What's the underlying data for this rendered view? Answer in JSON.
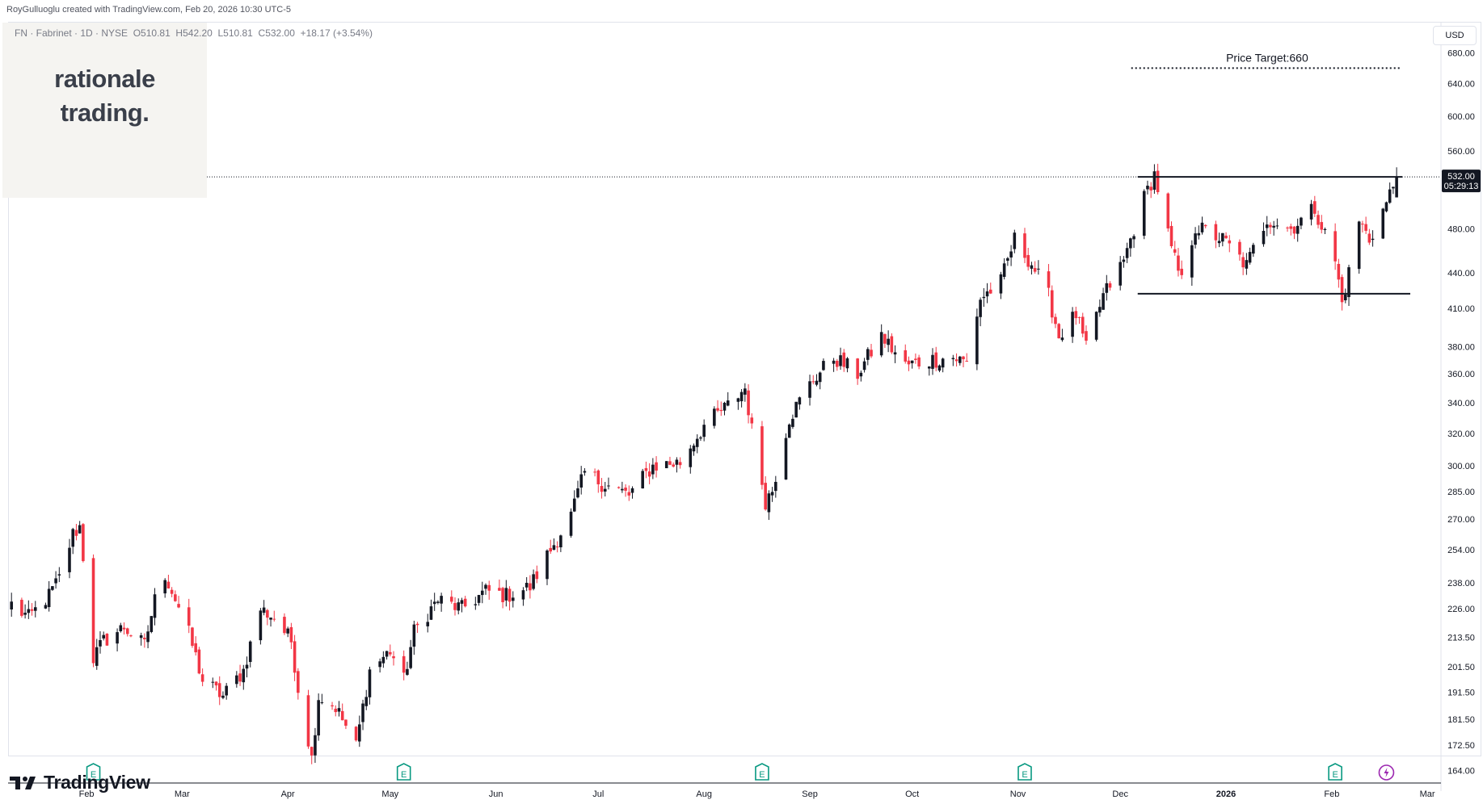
{
  "header": {
    "credit": "RoyGulluoglu created with TradingView.com, Feb 20, 2026 10:30 UTC-5"
  },
  "symbol_line": {
    "symbol": "FN · Fabrinet · 1D · NYSE",
    "open_label": "O",
    "open": "510.81",
    "high_label": "H",
    "high": "542.20",
    "low_label": "L",
    "low": "510.81",
    "close_label": "C",
    "close": "532.00",
    "change": "+18.17 (+3.54%)"
  },
  "watermark": {
    "line1": "rationale",
    "line2": "trading."
  },
  "currency": "USD",
  "annotation": {
    "price_target_text": "Price Target:660"
  },
  "last_price": {
    "price": "532.00",
    "countdown": "05:29:13"
  },
  "footer": {
    "brand": "TradingView"
  },
  "colors": {
    "up": "#131722",
    "down": "#f23645",
    "grid": "#f0f3fa",
    "event_green": "#089981",
    "event_purple": "#9c27b0"
  },
  "icons": {
    "earnings": "earnings-event-icon",
    "dividend": "dividend-lightning-icon",
    "brand": "tradingview-logo-icon"
  },
  "chart_data": {
    "type": "candlestick",
    "scale": "log",
    "price_ticks": [
      164.0,
      172.5,
      181.5,
      191.5,
      201.5,
      213.5,
      226.0,
      238.0,
      254.0,
      270.0,
      285.0,
      300.0,
      320.0,
      340.0,
      360.0,
      380.0,
      410.0,
      440.0,
      480.0,
      560.0,
      600.0,
      640.0,
      680.0
    ],
    "price_tick_labels": [
      "164.00",
      "172.50",
      "181.50",
      "191.50",
      "201.50",
      "213.50",
      "226.00",
      "238.00",
      "254.00",
      "270.00",
      "285.00",
      "300.00",
      "320.00",
      "340.00",
      "360.00",
      "380.00",
      "410.00",
      "440.00",
      "480.00",
      "560.00",
      "600.00",
      "640.00",
      "680.00"
    ],
    "x_labels": [
      {
        "label": "Feb",
        "date": "2025-02-01"
      },
      {
        "label": "Mar",
        "date": "2025-03-01"
      },
      {
        "label": "Apr",
        "date": "2025-04-01"
      },
      {
        "label": "May",
        "date": "2025-05-01"
      },
      {
        "label": "Jun",
        "date": "2025-06-01"
      },
      {
        "label": "Jul",
        "date": "2025-07-01"
      },
      {
        "label": "Aug",
        "date": "2025-08-01"
      },
      {
        "label": "Sep",
        "date": "2025-09-01"
      },
      {
        "label": "Oct",
        "date": "2025-10-01"
      },
      {
        "label": "Nov",
        "date": "2025-11-01"
      },
      {
        "label": "Dec",
        "date": "2025-12-01"
      },
      {
        "label": "2026",
        "date": "2026-01-01",
        "bold": true
      },
      {
        "label": "Feb",
        "date": "2026-02-01"
      },
      {
        "label": "Mar",
        "date": "2026-03-01"
      }
    ],
    "x_range": [
      "2025-01-09",
      "2026-03-05"
    ],
    "y_range": [
      160,
      712
    ],
    "price_target": 660,
    "resistance": 532,
    "support": 422,
    "last_close": 532.0,
    "earnings_dates": [
      "2025-02-03",
      "2025-05-05",
      "2025-08-18",
      "2025-11-03",
      "2026-02-02"
    ],
    "dividend_dates": [
      "2026-02-17"
    ],
    "path_anchors": [
      [
        "2025-01-10",
        228
      ],
      [
        "2025-01-15",
        222
      ],
      [
        "2025-01-21",
        232
      ],
      [
        "2025-01-24",
        240
      ],
      [
        "2025-01-28",
        262
      ],
      [
        "2025-01-30",
        266
      ],
      [
        "2025-02-03",
        205
      ],
      [
        "2025-02-06",
        212
      ],
      [
        "2025-02-12",
        218
      ],
      [
        "2025-02-18",
        210
      ],
      [
        "2025-02-21",
        230
      ],
      [
        "2025-02-24",
        242
      ],
      [
        "2025-03-03",
        215
      ],
      [
        "2025-03-07",
        196
      ],
      [
        "2025-03-13",
        190
      ],
      [
        "2025-03-19",
        200
      ],
      [
        "2025-03-24",
        226
      ],
      [
        "2025-03-28",
        222
      ],
      [
        "2025-04-02",
        212
      ],
      [
        "2025-04-04",
        193
      ],
      [
        "2025-04-08",
        168
      ],
      [
        "2025-04-10",
        190
      ],
      [
        "2025-04-15",
        186
      ],
      [
        "2025-04-21",
        172
      ],
      [
        "2025-04-25",
        200
      ],
      [
        "2025-05-01",
        208
      ],
      [
        "2025-05-05",
        196
      ],
      [
        "2025-05-08",
        216
      ],
      [
        "2025-05-15",
        230
      ],
      [
        "2025-05-22",
        226
      ],
      [
        "2025-05-29",
        234
      ],
      [
        "2025-06-04",
        232
      ],
      [
        "2025-06-11",
        236
      ],
      [
        "2025-06-17",
        254
      ],
      [
        "2025-06-23",
        272
      ],
      [
        "2025-06-27",
        296
      ],
      [
        "2025-07-02",
        290
      ],
      [
        "2025-07-10",
        283
      ],
      [
        "2025-07-17",
        300
      ],
      [
        "2025-07-25",
        302
      ],
      [
        "2025-08-01",
        325
      ],
      [
        "2025-08-08",
        338
      ],
      [
        "2025-08-13",
        350
      ],
      [
        "2025-08-15",
        322
      ],
      [
        "2025-08-19",
        280
      ],
      [
        "2025-08-21",
        286
      ],
      [
        "2025-08-26",
        330
      ],
      [
        "2025-09-02",
        356
      ],
      [
        "2025-09-08",
        372
      ],
      [
        "2025-09-15",
        360
      ],
      [
        "2025-09-22",
        388
      ],
      [
        "2025-09-29",
        366
      ],
      [
        "2025-10-06",
        370
      ],
      [
        "2025-10-13",
        372
      ],
      [
        "2025-10-17",
        368
      ],
      [
        "2025-10-21",
        418
      ],
      [
        "2025-10-27",
        432
      ],
      [
        "2025-10-31",
        470
      ],
      [
        "2025-11-05",
        448
      ],
      [
        "2025-11-10",
        420
      ],
      [
        "2025-11-13",
        388
      ],
      [
        "2025-11-18",
        405
      ],
      [
        "2025-11-21",
        378
      ],
      [
        "2025-11-26",
        420
      ],
      [
        "2025-12-02",
        450
      ],
      [
        "2025-12-08",
        510
      ],
      [
        "2025-12-11",
        535
      ],
      [
        "2025-12-16",
        460
      ],
      [
        "2025-12-19",
        432
      ],
      [
        "2025-12-23",
        482
      ],
      [
        "2025-12-31",
        470
      ],
      [
        "2026-01-07",
        446
      ],
      [
        "2026-01-13",
        490
      ],
      [
        "2026-01-20",
        480
      ],
      [
        "2026-01-27",
        500
      ],
      [
        "2026-02-02",
        450
      ],
      [
        "2026-02-04",
        414
      ],
      [
        "2026-02-06",
        440
      ],
      [
        "2026-02-09",
        488
      ],
      [
        "2026-02-12",
        470
      ],
      [
        "2026-02-17",
        505
      ],
      [
        "2026-02-20",
        532
      ]
    ]
  }
}
